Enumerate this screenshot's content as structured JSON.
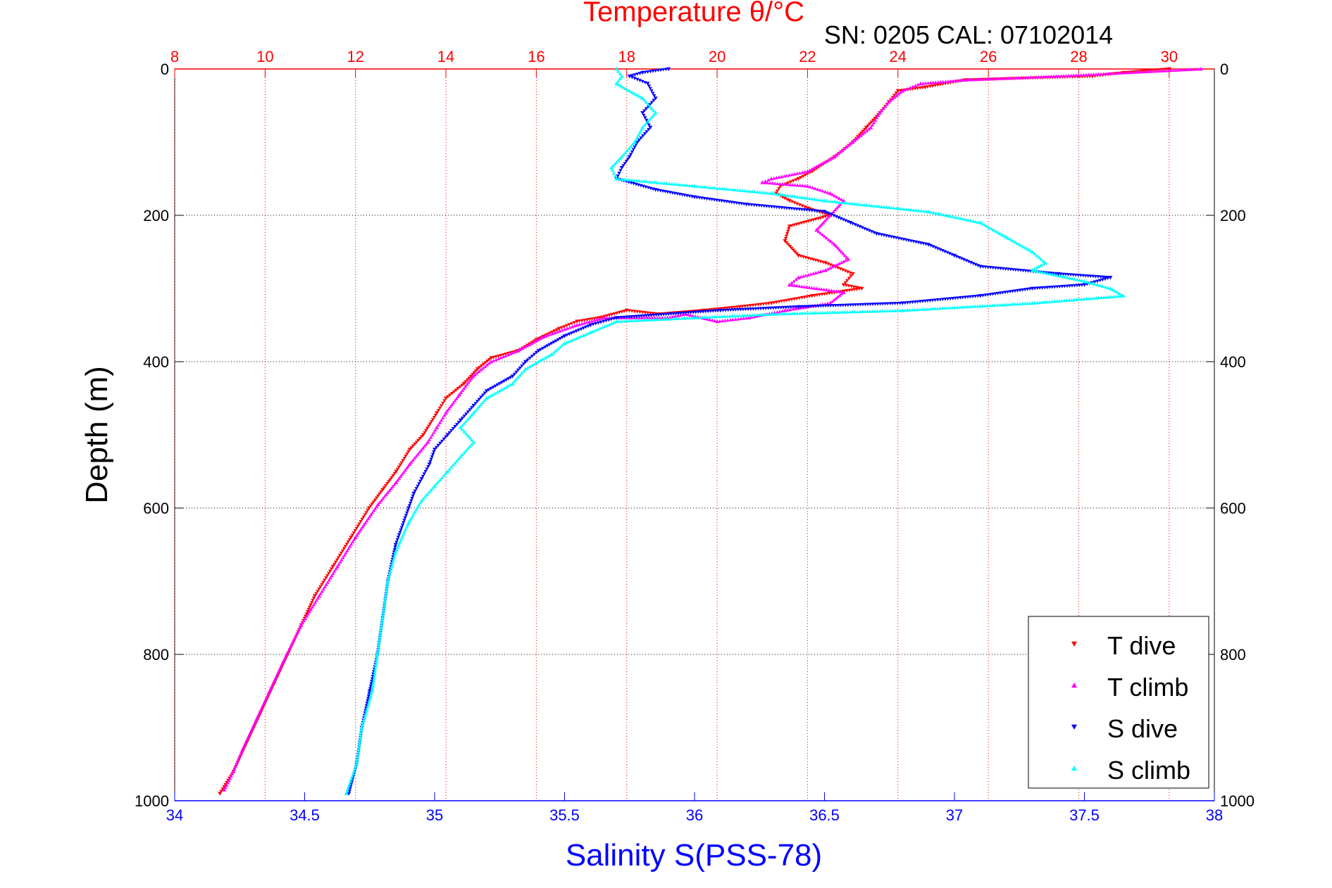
{
  "chart_data": {
    "type": "scatter",
    "title": "Temperature θ/°C",
    "subtitle": "SN: 0205  CAL: 07102014",
    "xlabel": "Salinity S(PSS-78)",
    "ylabel": "Depth (m)",
    "salinity_axis": {
      "range": [
        34,
        38
      ],
      "ticks": [
        34,
        34.5,
        35,
        35.5,
        36,
        36.5,
        37,
        37.5,
        38
      ],
      "tick_labels": [
        "34",
        "34.5",
        "35",
        "35.5",
        "36",
        "36.5",
        "37",
        "37.5",
        "38"
      ],
      "color": "#0000ff"
    },
    "temperature_axis": {
      "range": [
        8,
        31
      ],
      "ticks": [
        8,
        10,
        12,
        14,
        16,
        18,
        20,
        22,
        24,
        26,
        28,
        30
      ],
      "tick_labels": [
        "8",
        "10",
        "12",
        "14",
        "16",
        "18",
        "20",
        "22",
        "24",
        "26",
        "28",
        "30"
      ],
      "color": "#ff0000"
    },
    "depth_axis": {
      "range": [
        0,
        1000
      ],
      "reversed": true,
      "ticks": [
        0,
        200,
        400,
        600,
        800,
        1000
      ],
      "tick_labels": [
        "0",
        "200",
        "400",
        "600",
        "800",
        "1000"
      ]
    },
    "grid": true,
    "legend_position": "bottom-right",
    "series": [
      {
        "name": "T dive",
        "axis": "temperature",
        "color": "#ff0000",
        "marker": "triangle-down",
        "points": [
          [
            30.0,
            0
          ],
          [
            29.0,
            5
          ],
          [
            28.3,
            10
          ],
          [
            25.5,
            15
          ],
          [
            24.6,
            25
          ],
          [
            24.0,
            30
          ],
          [
            23.8,
            45
          ],
          [
            23.6,
            60
          ],
          [
            23.3,
            80
          ],
          [
            23.0,
            100
          ],
          [
            22.6,
            120
          ],
          [
            22.1,
            140
          ],
          [
            21.8,
            150
          ],
          [
            21.4,
            160
          ],
          [
            21.3,
            170
          ],
          [
            21.6,
            180
          ],
          [
            22.0,
            190
          ],
          [
            22.5,
            200
          ],
          [
            21.6,
            215
          ],
          [
            21.5,
            235
          ],
          [
            21.8,
            255
          ],
          [
            22.4,
            265
          ],
          [
            23.0,
            280
          ],
          [
            22.8,
            295
          ],
          [
            23.2,
            300
          ],
          [
            22.1,
            310
          ],
          [
            21.2,
            320
          ],
          [
            20.5,
            325
          ],
          [
            19.7,
            330
          ],
          [
            18.7,
            335
          ],
          [
            18.0,
            330
          ],
          [
            17.4,
            340
          ],
          [
            16.9,
            345
          ],
          [
            16.5,
            355
          ],
          [
            16.0,
            370
          ],
          [
            15.6,
            385
          ],
          [
            15.0,
            395
          ],
          [
            14.7,
            410
          ],
          [
            14.4,
            430
          ],
          [
            14.0,
            450
          ],
          [
            13.8,
            470
          ],
          [
            13.5,
            500
          ],
          [
            13.2,
            520
          ],
          [
            12.9,
            550
          ],
          [
            12.6,
            575
          ],
          [
            12.3,
            600
          ],
          [
            11.9,
            640
          ],
          [
            11.5,
            680
          ],
          [
            11.1,
            720
          ],
          [
            10.8,
            760
          ],
          [
            10.5,
            800
          ],
          [
            10.2,
            840
          ],
          [
            9.9,
            880
          ],
          [
            9.6,
            920
          ],
          [
            9.3,
            960
          ],
          [
            9.0,
            990
          ]
        ]
      },
      {
        "name": "T climb",
        "axis": "temperature",
        "color": "#ff00ff",
        "marker": "triangle-up",
        "points": [
          [
            30.7,
            0
          ],
          [
            27.5,
            10
          ],
          [
            25.5,
            15
          ],
          [
            24.5,
            20
          ],
          [
            24.1,
            30
          ],
          [
            23.8,
            45
          ],
          [
            23.6,
            60
          ],
          [
            23.4,
            80
          ],
          [
            23.0,
            100
          ],
          [
            22.6,
            120
          ],
          [
            22.0,
            140
          ],
          [
            21.2,
            150
          ],
          [
            21.0,
            155
          ],
          [
            22.0,
            160
          ],
          [
            22.5,
            170
          ],
          [
            22.8,
            180
          ],
          [
            22.5,
            200
          ],
          [
            22.2,
            220
          ],
          [
            22.6,
            240
          ],
          [
            22.9,
            260
          ],
          [
            22.4,
            275
          ],
          [
            21.8,
            285
          ],
          [
            21.6,
            295
          ],
          [
            22.8,
            305
          ],
          [
            22.5,
            320
          ],
          [
            21.5,
            330
          ],
          [
            20.7,
            340
          ],
          [
            20.0,
            345
          ],
          [
            19.3,
            335
          ],
          [
            18.9,
            340
          ],
          [
            17.5,
            340
          ],
          [
            16.9,
            350
          ],
          [
            16.2,
            365
          ],
          [
            15.6,
            385
          ],
          [
            15.0,
            400
          ],
          [
            14.6,
            420
          ],
          [
            14.3,
            445
          ],
          [
            14.0,
            470
          ],
          [
            13.8,
            490
          ],
          [
            13.6,
            510
          ],
          [
            13.2,
            540
          ],
          [
            12.9,
            565
          ],
          [
            12.5,
            595
          ],
          [
            12.0,
            640
          ],
          [
            11.6,
            680
          ],
          [
            11.2,
            720
          ],
          [
            10.8,
            760
          ],
          [
            10.4,
            810
          ],
          [
            10.1,
            850
          ],
          [
            9.8,
            890
          ],
          [
            9.5,
            930
          ],
          [
            9.3,
            960
          ],
          [
            9.1,
            985
          ]
        ]
      },
      {
        "name": "S dive",
        "axis": "salinity",
        "color": "#0000ff",
        "marker": "triangle-down",
        "points": [
          [
            35.9,
            0
          ],
          [
            35.8,
            5
          ],
          [
            35.75,
            10
          ],
          [
            35.82,
            20
          ],
          [
            35.85,
            40
          ],
          [
            35.8,
            60
          ],
          [
            35.83,
            80
          ],
          [
            35.78,
            100
          ],
          [
            35.75,
            120
          ],
          [
            35.72,
            135
          ],
          [
            35.7,
            150
          ],
          [
            35.85,
            165
          ],
          [
            36.0,
            175
          ],
          [
            36.2,
            185
          ],
          [
            36.5,
            195
          ],
          [
            36.6,
            210
          ],
          [
            36.7,
            225
          ],
          [
            36.9,
            240
          ],
          [
            37.0,
            255
          ],
          [
            37.1,
            270
          ],
          [
            37.4,
            280
          ],
          [
            37.6,
            285
          ],
          [
            37.5,
            295
          ],
          [
            37.3,
            300
          ],
          [
            37.1,
            310
          ],
          [
            36.8,
            320
          ],
          [
            36.4,
            325
          ],
          [
            36.1,
            330
          ],
          [
            35.7,
            340
          ],
          [
            35.6,
            350
          ],
          [
            35.5,
            365
          ],
          [
            35.4,
            385
          ],
          [
            35.35,
            400
          ],
          [
            35.3,
            420
          ],
          [
            35.2,
            440
          ],
          [
            35.15,
            460
          ],
          [
            35.1,
            480
          ],
          [
            35.05,
            500
          ],
          [
            35.0,
            520
          ],
          [
            34.98,
            540
          ],
          [
            34.95,
            560
          ],
          [
            34.92,
            580
          ],
          [
            34.9,
            600
          ],
          [
            34.85,
            650
          ],
          [
            34.82,
            700
          ],
          [
            34.8,
            750
          ],
          [
            34.78,
            800
          ],
          [
            34.75,
            850
          ],
          [
            34.72,
            900
          ],
          [
            34.7,
            950
          ],
          [
            34.67,
            990
          ]
        ]
      },
      {
        "name": "S climb",
        "axis": "salinity",
        "color": "#00ffff",
        "marker": "triangle-up",
        "points": [
          [
            35.7,
            0
          ],
          [
            35.72,
            10
          ],
          [
            35.7,
            20
          ],
          [
            35.8,
            40
          ],
          [
            35.85,
            60
          ],
          [
            35.8,
            80
          ],
          [
            35.77,
            100
          ],
          [
            35.72,
            120
          ],
          [
            35.68,
            135
          ],
          [
            35.7,
            150
          ],
          [
            36.0,
            160
          ],
          [
            36.3,
            170
          ],
          [
            36.5,
            180
          ],
          [
            36.9,
            195
          ],
          [
            37.1,
            210
          ],
          [
            37.2,
            230
          ],
          [
            37.3,
            250
          ],
          [
            37.35,
            265
          ],
          [
            37.3,
            275
          ],
          [
            37.5,
            290
          ],
          [
            37.6,
            300
          ],
          [
            37.65,
            310
          ],
          [
            37.3,
            320
          ],
          [
            36.8,
            330
          ],
          [
            36.3,
            335
          ],
          [
            36.0,
            340
          ],
          [
            35.7,
            345
          ],
          [
            35.6,
            360
          ],
          [
            35.5,
            375
          ],
          [
            35.45,
            390
          ],
          [
            35.35,
            410
          ],
          [
            35.3,
            430
          ],
          [
            35.2,
            450
          ],
          [
            35.15,
            470
          ],
          [
            35.1,
            490
          ],
          [
            35.15,
            510
          ],
          [
            35.1,
            530
          ],
          [
            35.05,
            550
          ],
          [
            35.0,
            570
          ],
          [
            34.95,
            590
          ],
          [
            34.9,
            620
          ],
          [
            34.85,
            660
          ],
          [
            34.82,
            700
          ],
          [
            34.8,
            750
          ],
          [
            34.78,
            800
          ],
          [
            34.76,
            850
          ],
          [
            34.72,
            900
          ],
          [
            34.7,
            950
          ],
          [
            34.66,
            990
          ]
        ]
      }
    ]
  }
}
